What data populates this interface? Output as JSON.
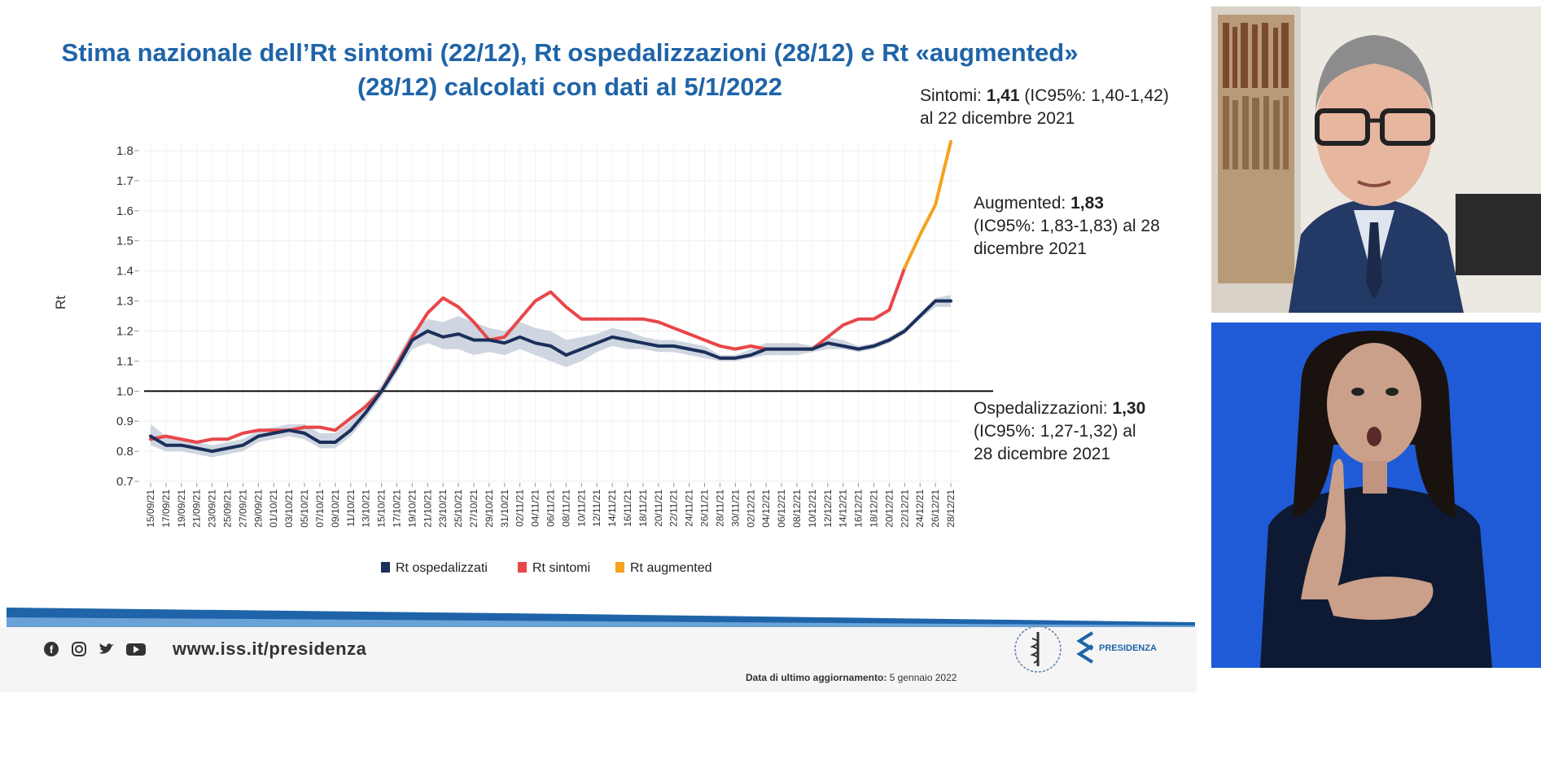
{
  "slide": {
    "title_line1": "Stima nazionale dell’Rt sintomi (22/12), Rt ospedalizzazioni (28/12) e Rt «augmented»",
    "title_line2": "(28/12) calcolati con dati al 5/1/2022"
  },
  "annotations": {
    "sintomi": {
      "label": "Sintomi: ",
      "value": "1,41",
      "ci": " (IC95%: 1,40-1,42)",
      "date": "al 22 dicembre 2021"
    },
    "augmented": {
      "label": "Augmented: ",
      "value": "1,83",
      "ci": "(IC95%: 1,83-1,83) al 28",
      "date": "dicembre 2021"
    },
    "ospedalizzazioni": {
      "label": "Ospedalizzazioni: ",
      "value": "1,30",
      "ci": "(IC95%: 1,27-1,32) al",
      "date": "28 dicembre 2021"
    }
  },
  "footer": {
    "site": "www.iss.it/presidenza",
    "updated_label": "Data di ultimo aggiornamento:",
    "updated_value": " 5 gennaio 2022",
    "presidenza": "PRESIDENZA",
    "social_icons": [
      "facebook-icon",
      "instagram-icon",
      "twitter-icon",
      "youtube-icon"
    ]
  },
  "colors": {
    "title": "#1f64a8",
    "ospedalizzati": "#1b2f5a",
    "sintomi": "#e8464a",
    "augmented": "#f4a21f",
    "ci_band": "#c3ccd9",
    "footer_band": "#1f64a8"
  },
  "chart_data": {
    "type": "line",
    "ylabel": "Rt",
    "ylim": [
      0.7,
      1.8
    ],
    "yticks": [
      0.7,
      0.8,
      0.9,
      1.0,
      1.1,
      1.2,
      1.3,
      1.4,
      1.5,
      1.6,
      1.7,
      1.8
    ],
    "ytick_labels": [
      "0.7",
      "0.8",
      "0.9",
      "1.0",
      "1.1",
      "1.2",
      "1.3",
      "1.4",
      "1.5",
      "1.6",
      "1.7",
      "1.8"
    ],
    "reference_line": 1.0,
    "xticks": [
      "15/09/21",
      "17/09/21",
      "19/09/21",
      "21/09/21",
      "23/09/21",
      "25/09/21",
      "27/09/21",
      "29/09/21",
      "01/10/21",
      "03/10/21",
      "05/10/21",
      "07/10/21",
      "09/10/21",
      "11/10/21",
      "13/10/21",
      "15/10/21",
      "17/10/21",
      "19/10/21",
      "21/10/21",
      "23/10/21",
      "25/10/21",
      "27/10/21",
      "29/10/21",
      "31/10/21",
      "02/11/21",
      "04/11/21",
      "06/11/21",
      "08/11/21",
      "10/11/21",
      "12/11/21",
      "14/11/21",
      "16/11/21",
      "18/11/21",
      "20/11/21",
      "22/11/21",
      "24/11/21",
      "26/11/21",
      "28/11/21",
      "30/11/21",
      "02/12/21",
      "04/12/21",
      "06/12/21",
      "08/12/21",
      "10/12/21",
      "12/12/21",
      "14/12/21",
      "16/12/21",
      "18/12/21",
      "20/12/21",
      "22/12/21",
      "24/12/21",
      "26/12/21",
      "28/12/21"
    ],
    "legend_position": "bottom",
    "grid": true,
    "series": [
      {
        "name": "Rt ospedalizzati",
        "x": [
          0,
          1,
          2,
          3,
          4,
          5,
          6,
          7,
          8,
          9,
          10,
          11,
          12,
          13,
          14,
          15,
          16,
          17,
          18,
          19,
          20,
          21,
          22,
          23,
          24,
          25,
          26,
          27,
          28,
          29,
          30,
          31,
          32,
          33,
          34,
          35,
          36,
          37,
          38,
          39,
          40,
          41,
          42,
          43,
          44,
          45,
          46,
          47,
          48,
          49,
          50,
          51,
          52
        ],
        "values": [
          0.85,
          0.82,
          0.82,
          0.81,
          0.8,
          0.81,
          0.82,
          0.85,
          0.86,
          0.87,
          0.86,
          0.83,
          0.83,
          0.87,
          0.93,
          1.0,
          1.08,
          1.17,
          1.2,
          1.18,
          1.19,
          1.17,
          1.17,
          1.16,
          1.18,
          1.16,
          1.15,
          1.12,
          1.14,
          1.16,
          1.18,
          1.17,
          1.16,
          1.15,
          1.15,
          1.14,
          1.13,
          1.11,
          1.11,
          1.12,
          1.14,
          1.14,
          1.14,
          1.14,
          1.16,
          1.15,
          1.14,
          1.15,
          1.17,
          1.2,
          1.25,
          1.3,
          1.3
        ],
        "ci_low": [
          0.82,
          0.8,
          0.8,
          0.79,
          0.78,
          0.79,
          0.8,
          0.83,
          0.84,
          0.85,
          0.84,
          0.81,
          0.81,
          0.85,
          0.91,
          0.98,
          1.06,
          1.14,
          1.16,
          1.14,
          1.14,
          1.12,
          1.13,
          1.12,
          1.14,
          1.12,
          1.1,
          1.08,
          1.1,
          1.13,
          1.15,
          1.14,
          1.14,
          1.13,
          1.13,
          1.12,
          1.11,
          1.1,
          1.1,
          1.11,
          1.12,
          1.12,
          1.12,
          1.13,
          1.14,
          1.14,
          1.13,
          1.14,
          1.16,
          1.19,
          1.24,
          1.28,
          1.28
        ],
        "ci_high": [
          0.89,
          0.85,
          0.84,
          0.83,
          0.82,
          0.83,
          0.84,
          0.87,
          0.88,
          0.89,
          0.89,
          0.86,
          0.86,
          0.9,
          0.96,
          1.02,
          1.11,
          1.2,
          1.24,
          1.23,
          1.25,
          1.23,
          1.21,
          1.2,
          1.23,
          1.21,
          1.2,
          1.17,
          1.18,
          1.19,
          1.21,
          1.2,
          1.18,
          1.17,
          1.17,
          1.16,
          1.15,
          1.12,
          1.12,
          1.14,
          1.16,
          1.16,
          1.16,
          1.15,
          1.18,
          1.17,
          1.15,
          1.16,
          1.18,
          1.21,
          1.26,
          1.31,
          1.32
        ]
      },
      {
        "name": "Rt sintomi",
        "x": [
          0,
          1,
          2,
          3,
          4,
          5,
          6,
          7,
          8,
          9,
          10,
          11,
          12,
          13,
          14,
          15,
          16,
          17,
          18,
          19,
          20,
          21,
          22,
          23,
          24,
          25,
          26,
          27,
          28,
          29,
          30,
          31,
          32,
          33,
          34,
          35,
          36,
          37,
          38,
          39,
          40,
          41,
          42,
          43,
          44,
          45,
          46,
          47,
          48,
          49
        ],
        "values": [
          0.84,
          0.85,
          0.84,
          0.83,
          0.84,
          0.84,
          0.86,
          0.87,
          0.87,
          0.87,
          0.88,
          0.88,
          0.87,
          0.91,
          0.95,
          1.0,
          1.09,
          1.18,
          1.26,
          1.31,
          1.28,
          1.23,
          1.17,
          1.18,
          1.24,
          1.3,
          1.33,
          1.28,
          1.24,
          1.24,
          1.24,
          1.24,
          1.24,
          1.23,
          1.21,
          1.19,
          1.17,
          1.15,
          1.14,
          1.15,
          1.14,
          1.14,
          1.14,
          1.14,
          1.18,
          1.22,
          1.24,
          1.24,
          1.27,
          1.41
        ]
      },
      {
        "name": "Rt augmented",
        "x": [
          49,
          50,
          51,
          52
        ],
        "values": [
          1.41,
          1.52,
          1.62,
          1.83
        ]
      }
    ]
  }
}
